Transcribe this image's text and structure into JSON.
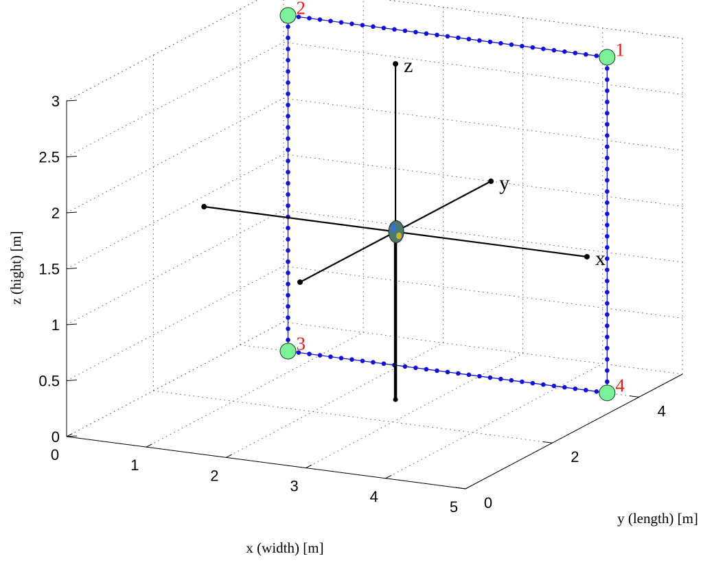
{
  "chart_data": {
    "type": "scatter",
    "projection": "3d",
    "grid": true,
    "xlabel": "x (width) [m]",
    "ylabel": "y (length) [m]",
    "zlabel": "z (hight) [m]",
    "xlim": [
      0,
      5
    ],
    "ylim": [
      0,
      5
    ],
    "zlim": [
      0,
      3
    ],
    "x_ticks": [
      "0",
      "1",
      "2",
      "3",
      "4",
      "5"
    ],
    "y_ticks": [
      "0",
      "2",
      "4"
    ],
    "z_ticks": [
      "0",
      "0.5",
      "1",
      "1.5",
      "2",
      "2.5",
      "3"
    ],
    "path_color": "#1010d8",
    "corner_color": "#7cf29b",
    "corner_label_color": "#e8191c",
    "path": {
      "points_per_edge": 30,
      "corners": [
        {
          "label": "1",
          "x": 4.6,
          "y": 4.0,
          "z": 3.0
        },
        {
          "label": "2",
          "x": 0.6,
          "y": 4.0,
          "z": 3.0
        },
        {
          "label": "3",
          "x": 0.6,
          "y": 4.0,
          "z": 0.0
        },
        {
          "label": "4",
          "x": 4.6,
          "y": 4.0,
          "z": 0.0
        }
      ]
    },
    "body_frame": {
      "origin": {
        "x": 2.6,
        "y": 2.8,
        "z": 1.5
      },
      "axes": [
        {
          "name": "x",
          "x": 5.0,
          "y": 2.8,
          "z": 1.5
        },
        {
          "name": "",
          "x": 0.2,
          "y": 2.8,
          "z": 1.5
        },
        {
          "name": "y",
          "x": 2.6,
          "y": 5.0,
          "z": 1.5
        },
        {
          "name": "",
          "x": 2.6,
          "y": 0.6,
          "z": 1.5
        },
        {
          "name": "z",
          "x": 2.6,
          "y": 2.8,
          "z": 3.0
        }
      ],
      "support_base": {
        "x": 2.6,
        "y": 2.8,
        "z": 0.0
      }
    }
  }
}
